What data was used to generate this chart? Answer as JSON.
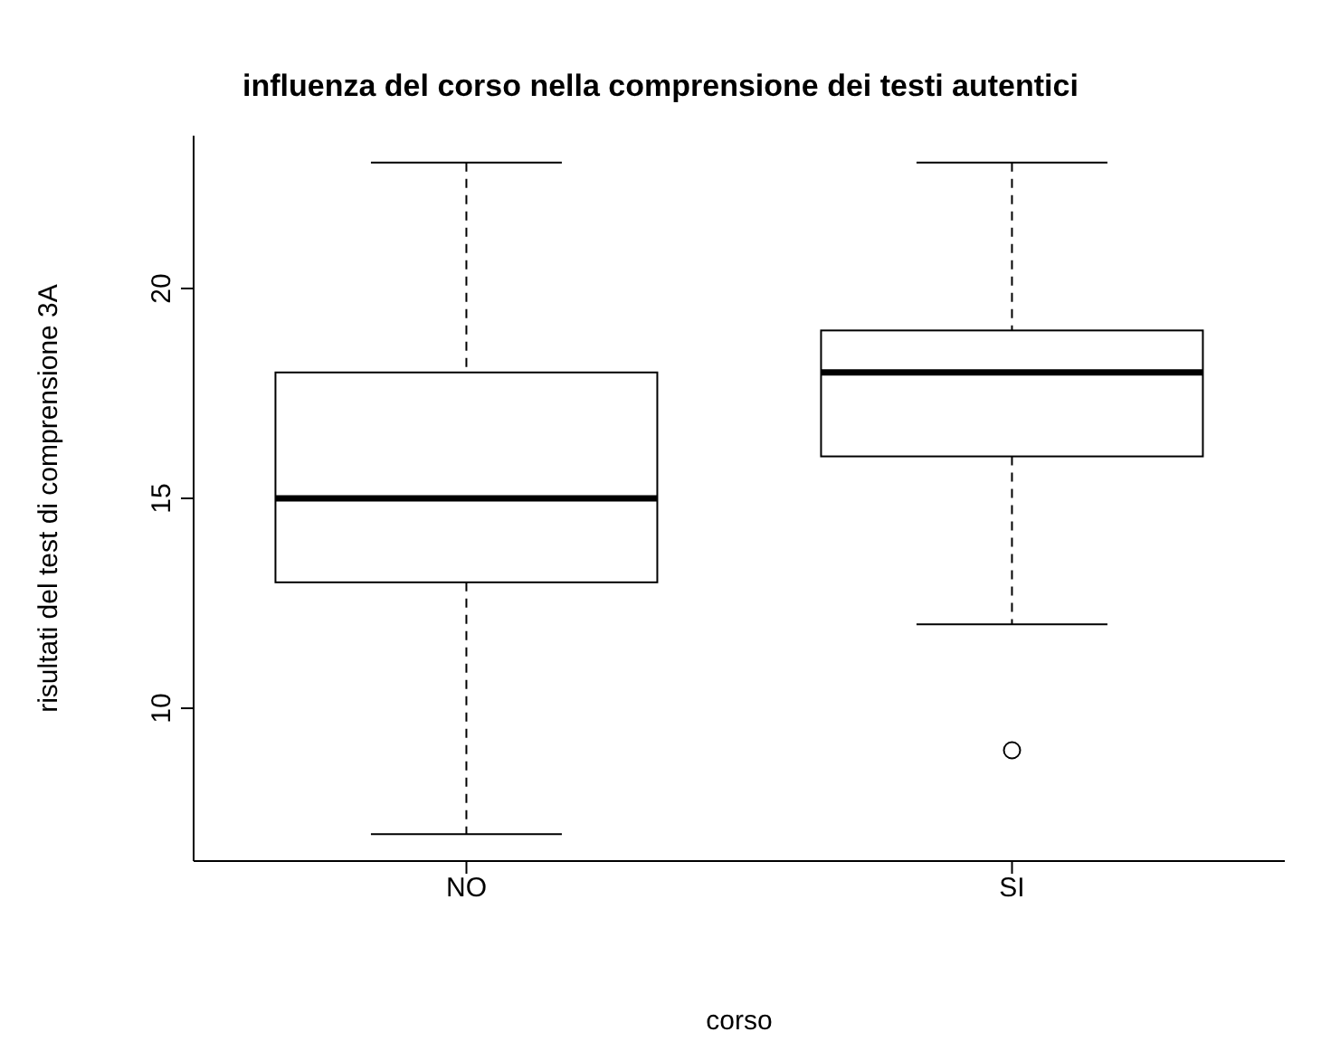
{
  "chart_data": {
    "type": "box",
    "title": "influenza del corso nella comprensione dei testi autentici",
    "xlabel": "corso",
    "ylabel": "risultati del test di comprensione 3A",
    "categories": [
      "NO",
      "SI"
    ],
    "boxes": [
      {
        "low": 7,
        "q1": 13,
        "median": 15,
        "q3": 18,
        "high": 23
      },
      {
        "low": 12,
        "q1": 16,
        "median": 18,
        "q3": 19,
        "high": 23,
        "outliers": [
          9
        ]
      }
    ],
    "ylim": [
      6.36,
      23.64
    ],
    "yticks": [
      10,
      15,
      20
    ],
    "grid": false,
    "legend": false
  }
}
